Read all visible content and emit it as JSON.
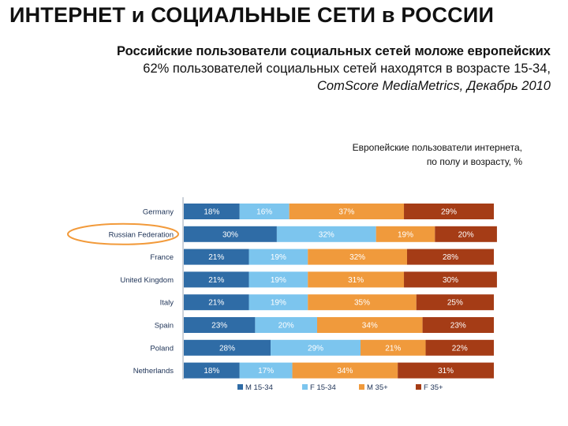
{
  "slide": {
    "title": "ИНТЕРНЕТ и СОЦИАЛЬНЫЕ СЕТИ в РОССИИ",
    "subtitle_line1": "Российские пользователи социальных сетей моложе европейских",
    "subtitle_line2": "62% пользователей социальных сетей находятся в возрасте 15-34,",
    "subtitle_line3": "ComScore MediaMetrics, Декабрь 2010"
  },
  "chart_data": {
    "type": "bar",
    "orientation": "horizontal",
    "stacked": true,
    "title": "Европейские пользователи интернета, по полу и возрасту, %",
    "title_line1": "Европейские пользователи интернета,",
    "title_line2": "по полу и возрасту, %",
    "highlighted_category": "Russian Federation",
    "categories": [
      "Germany",
      "Russian Federation",
      "France",
      "United Kingdom",
      "Italy",
      "Spain",
      "Poland",
      "Netherlands"
    ],
    "series": [
      {
        "name": "M 15-34",
        "color": "#2f6ca6",
        "values": [
          18,
          30,
          21,
          21,
          21,
          23,
          28,
          18
        ]
      },
      {
        "name": "F 15-34",
        "color": "#7cc5ee",
        "values": [
          16,
          32,
          19,
          19,
          19,
          20,
          29,
          17
        ]
      },
      {
        "name": "M 35+",
        "color": "#f09a3c",
        "values": [
          37,
          19,
          32,
          31,
          35,
          34,
          21,
          34
        ]
      },
      {
        "name": "F 35+",
        "color": "#a53c16",
        "values": [
          29,
          20,
          28,
          30,
          25,
          23,
          22,
          31
        ]
      }
    ],
    "label_suffix": "%",
    "xlim": [
      0,
      100
    ],
    "legend_position": "bottom"
  }
}
